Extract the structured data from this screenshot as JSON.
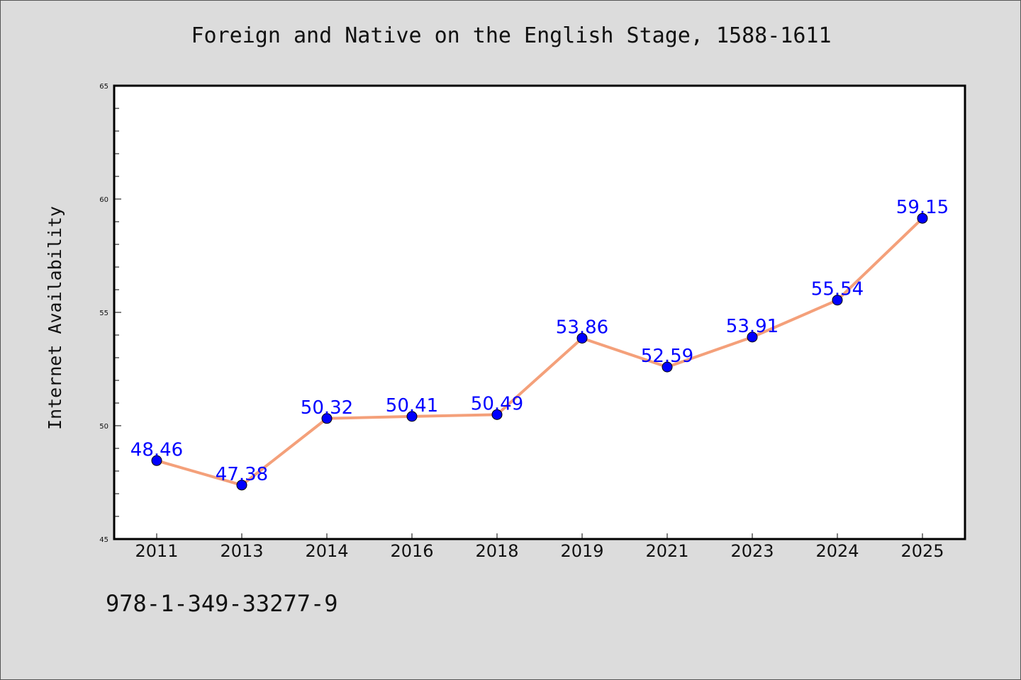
{
  "chart_data": {
    "type": "line",
    "title": "Foreign and Native on the English Stage, 1588-1611",
    "xlabel": "",
    "ylabel": "Internet Availability",
    "categories": [
      "2011",
      "2013",
      "2014",
      "2016",
      "2018",
      "2019",
      "2021",
      "2023",
      "2024",
      "2025"
    ],
    "series": [
      {
        "values": [
          48.46,
          47.38,
          50.32,
          50.41,
          50.49,
          53.86,
          52.59,
          53.91,
          55.54,
          59.15
        ]
      }
    ],
    "data_labels": [
      "48.46",
      "47.38",
      "50.32",
      "50.41",
      "50.49",
      "53.86",
      "52.59",
      "53.91",
      "55.54",
      "59.15"
    ],
    "ylim": [
      45,
      65
    ],
    "yticks": [
      "45",
      "50",
      "55",
      "60",
      "65"
    ],
    "grid": false,
    "legend": "none",
    "line_color": "#f4a07a",
    "marker_color": "#0000ff",
    "label_color": "#0000ff",
    "background_color": "#dcdcdc",
    "plot_background_color": "#ffffff"
  },
  "footnote": "978-1-349-33277-9"
}
